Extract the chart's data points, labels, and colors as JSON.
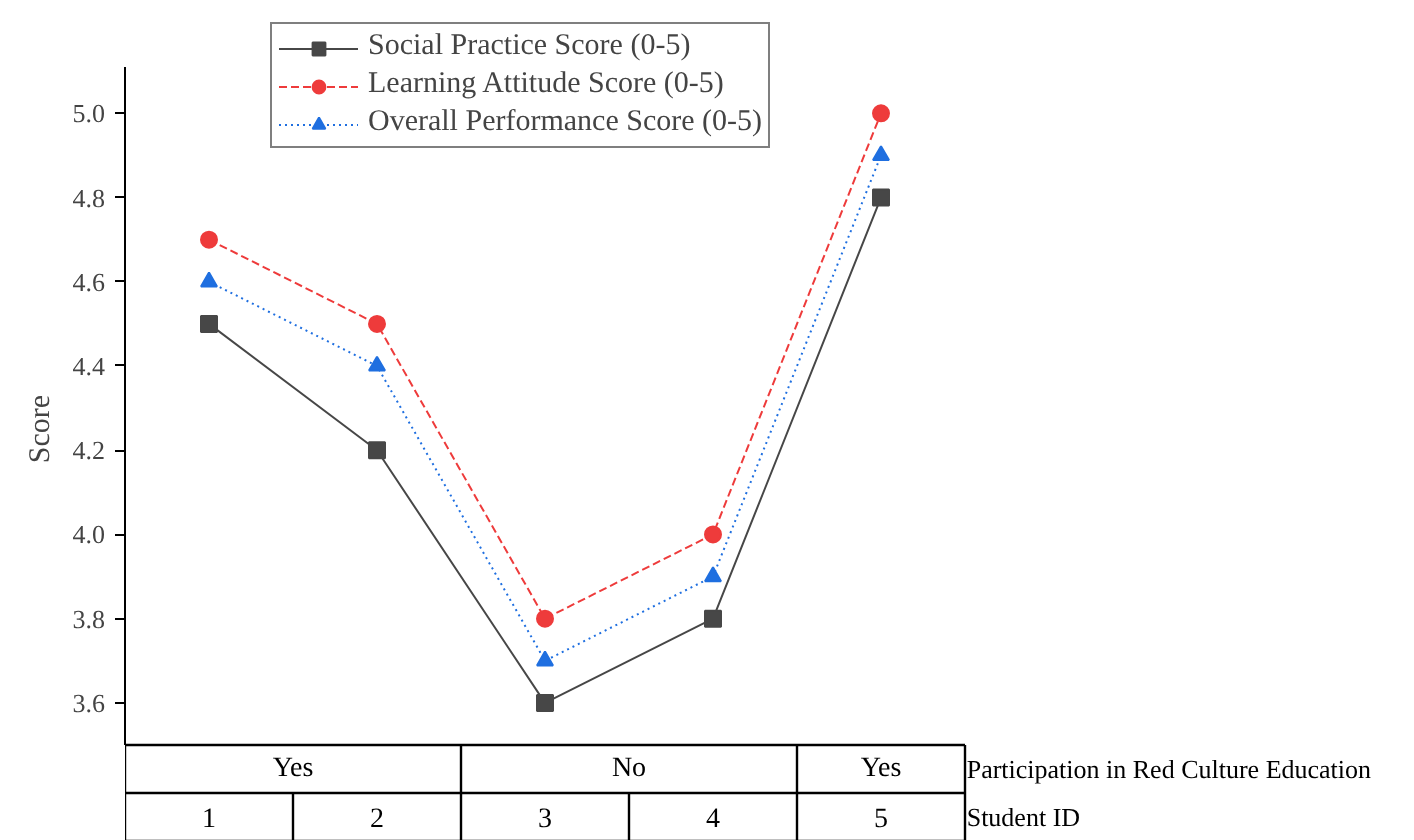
{
  "chart_data": {
    "type": "line",
    "ylabel": "Score",
    "xlabel": "Student ID",
    "categories": [
      "1",
      "2",
      "3",
      "4",
      "5"
    ],
    "ylim": [
      3.5,
      5.11
    ],
    "yticks": [
      {
        "value": 3.6,
        "label": "3.6"
      },
      {
        "value": 3.8,
        "label": "3.8"
      },
      {
        "value": 4.0,
        "label": "4.0"
      },
      {
        "value": 4.2,
        "label": "4.2"
      },
      {
        "value": 4.4,
        "label": "4.4"
      },
      {
        "value": 4.6,
        "label": "4.6"
      },
      {
        "value": 4.8,
        "label": "4.8"
      },
      {
        "value": 5.0,
        "label": "5.0"
      }
    ],
    "series": [
      {
        "name": "Social Practice Score (0-5)",
        "color": "#474747",
        "marker": "square",
        "line_style": "solid",
        "values": [
          4.5,
          4.2,
          3.6,
          3.8,
          4.8
        ]
      },
      {
        "name": "Learning Attitude Score (0-5)",
        "color": "#ee3b3b",
        "marker": "circle",
        "line_style": "dashed",
        "values": [
          4.7,
          4.5,
          3.8,
          4.0,
          5.0
        ]
      },
      {
        "name": "Overall Performance Score (0-5)",
        "color": "#1f6fe0",
        "marker": "triangle",
        "line_style": "dotted",
        "values": [
          4.6,
          4.4,
          3.7,
          3.9,
          4.9
        ]
      }
    ],
    "annotations": [
      "Participation in Red Culture Education",
      "Yes",
      "No",
      "Yes"
    ],
    "grid": false,
    "legend": "top"
  }
}
